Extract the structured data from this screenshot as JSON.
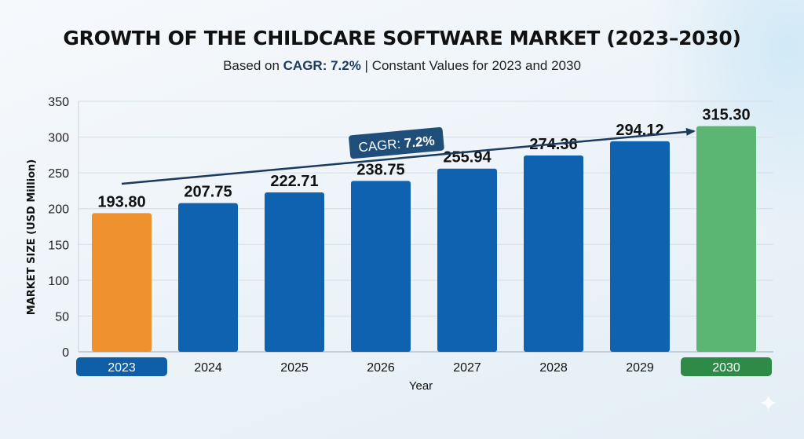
{
  "title": "GROWTH OF THE CHILDCARE SOFTWARE MARKET (2023–2030)",
  "subtitle": {
    "prefix": "Based on ",
    "highlight": "CAGR: 7.2%",
    "suffix": " | Constant Values for 2023 and 2030"
  },
  "colors": {
    "bar_default": "#0f62b0",
    "bar_start": "#f0912f",
    "bar_end": "#5bb573",
    "badge_start": "#0f5fa8",
    "badge_end": "#2e8b47",
    "arrow": "#1c3a5e",
    "cagr_badge": "#1f4e7a",
    "grid": "#d4dde6"
  },
  "cagr_label": {
    "prefix": "CAGR: ",
    "value": "7.2%"
  },
  "icons": {
    "sparkle": "✦"
  },
  "chart_data": {
    "type": "bar",
    "title": "GROWTH OF THE CHILDCARE SOFTWARE MARKET (2023–2030)",
    "subtitle": "Based on CAGR: 7.2% | Constant Values for 2023 and 2030",
    "categories": [
      "2023",
      "2024",
      "2025",
      "2026",
      "2027",
      "2028",
      "2029",
      "2030"
    ],
    "values": [
      193.8,
      207.75,
      222.71,
      238.75,
      255.94,
      274.36,
      294.12,
      315.3
    ],
    "value_labels": [
      "193.80",
      "207.75",
      "222.71",
      "238.75",
      "255.94",
      "274.36",
      "294.12",
      "315.30"
    ],
    "highlighted": {
      "2023": "start",
      "2030": "end"
    },
    "xlabel": "Year",
    "ylabel": "MARKET SIZE (USD Million)",
    "ylim": [
      0,
      350
    ],
    "yticks": [
      0,
      50,
      100,
      150,
      200,
      250,
      300,
      350
    ],
    "grid": true,
    "annotation": {
      "type": "trend-arrow",
      "from": "2023",
      "to": "2030",
      "label": "CAGR: 7.2%"
    }
  }
}
